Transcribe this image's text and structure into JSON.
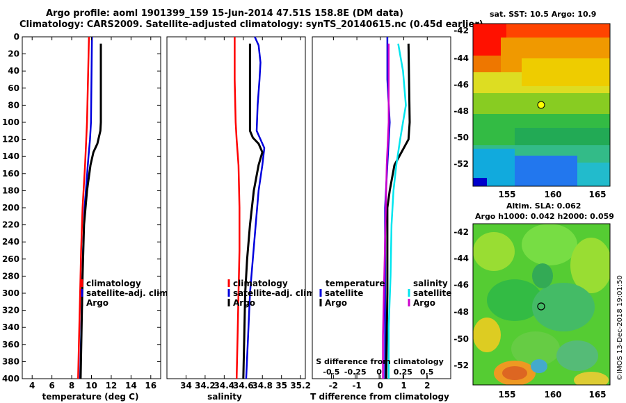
{
  "header": {
    "title_line1": "Argo profile: aoml 1901399_159 15-Jun-2014 47.51S 158.8E (DM data)",
    "title_line2": "Climatology: CARS2009. Satellite-adjusted climatology: synTS_20140615.nc (0.45d earlier)"
  },
  "map_sst": {
    "title": "sat. SST: 10.5 Argo: 10.9",
    "lat_ticks": [
      "-42",
      "-44",
      "-46",
      "-48",
      "-50",
      "-52"
    ],
    "lon_ticks": [
      "155",
      "160",
      "165"
    ]
  },
  "map_sla": {
    "title_line1": "Altim. SLA: 0.062",
    "title_line2": "Argo h1000: 0.042 h2000: 0.059",
    "lat_ticks": [
      "-42",
      "-44",
      "-46",
      "-48",
      "-50",
      "-52"
    ],
    "lon_ticks": [
      "155",
      "160",
      "165"
    ]
  },
  "watermark": "©IMOS 13-Dec-2018 19:01:50",
  "colors": {
    "climatology": "#ff0000",
    "satellite": "#0000dd",
    "argo": "#000000",
    "s_satellite": "#00e5ee",
    "s_argo": "#cc00cc"
  },
  "chart_data": [
    {
      "type": "line",
      "xlabel": "temperature (deg C)",
      "xlim": [
        3,
        17
      ],
      "ylim": [
        0,
        400
      ],
      "x_ticks": [
        "4",
        "6",
        "8",
        "10",
        "12",
        "14",
        "16"
      ],
      "y_ticks": [
        "0",
        "20",
        "40",
        "60",
        "80",
        "100",
        "120",
        "140",
        "160",
        "180",
        "200",
        "220",
        "240",
        "260",
        "280",
        "300",
        "320",
        "340",
        "360",
        "380",
        "400"
      ],
      "legend": [
        "climatology",
        "satellite-adj. clim.",
        "Argo"
      ],
      "series": [
        {
          "name": "climatology",
          "color": "#ff0000",
          "depth": [
            0,
            50,
            100,
            150,
            200,
            250,
            300,
            350,
            400
          ],
          "values": [
            9.75,
            9.65,
            9.55,
            9.35,
            9.1,
            8.95,
            8.85,
            8.75,
            8.65
          ]
        },
        {
          "name": "satellite-adj. clim.",
          "color": "#0000dd",
          "depth": [
            0,
            50,
            100,
            120,
            140,
            170,
            200,
            250,
            300,
            350,
            400
          ],
          "values": [
            10.05,
            10.0,
            9.95,
            9.85,
            9.7,
            9.5,
            9.3,
            9.15,
            9.05,
            8.95,
            8.85
          ]
        },
        {
          "name": "Argo",
          "color": "#000000",
          "depth": [
            8,
            100,
            110,
            125,
            135,
            150,
            180,
            220,
            280,
            340,
            400
          ],
          "values": [
            10.95,
            10.95,
            10.9,
            10.6,
            10.2,
            9.9,
            9.55,
            9.25,
            9.1,
            9.0,
            8.9
          ]
        }
      ]
    },
    {
      "type": "line",
      "xlabel": "salinity",
      "xlim": [
        33.8,
        35.25
      ],
      "ylim": [
        0,
        400
      ],
      "x_ticks": [
        "34",
        "34.2",
        "34.4",
        "34.6",
        "34.8",
        "35",
        "35.2"
      ],
      "legend": [
        "climatology",
        "satellite-adj. clim.",
        "Argo"
      ],
      "series": [
        {
          "name": "climatology",
          "color": "#ff0000",
          "depth": [
            0,
            50,
            100,
            120,
            150,
            200,
            250,
            300,
            350,
            400
          ],
          "values": [
            34.51,
            34.51,
            34.52,
            34.53,
            34.55,
            34.56,
            34.56,
            34.55,
            34.54,
            34.53
          ]
        },
        {
          "name": "satellite-adj. clim.",
          "color": "#0000dd",
          "depth": [
            0,
            10,
            30,
            50,
            80,
            110,
            130,
            150,
            180,
            220,
            260,
            300,
            350,
            400
          ],
          "values": [
            34.72,
            34.76,
            34.78,
            34.77,
            34.75,
            34.74,
            34.82,
            34.8,
            34.76,
            34.73,
            34.7,
            34.67,
            34.65,
            34.63
          ]
        },
        {
          "name": "Argo",
          "color": "#000000",
          "depth": [
            8,
            110,
            118,
            125,
            135,
            150,
            180,
            220,
            260,
            300,
            350,
            400
          ],
          "values": [
            34.67,
            34.67,
            34.7,
            34.76,
            34.8,
            34.76,
            34.71,
            34.67,
            34.64,
            34.62,
            34.61,
            34.6
          ]
        }
      ]
    },
    {
      "type": "line",
      "xlabel": "T difference from climatology",
      "x2label": "S difference from climatology",
      "xlim": [
        -2.9,
        3.0
      ],
      "x2lim": [
        -0.7,
        0.75
      ],
      "ylim": [
        0,
        400
      ],
      "x_ticks": [
        "-2",
        "-1",
        "0",
        "1",
        "2"
      ],
      "x2_ticks": [
        "-0.5",
        "-0.25",
        "0",
        "0.25",
        "0.5"
      ],
      "legend_temperature_title": "temperature",
      "legend_salinity_title": "salinity",
      "legend_temperature": [
        "satellite",
        "Argo"
      ],
      "legend_salinity": [
        "satellite",
        "Argo"
      ],
      "series": [
        {
          "name": "T satellite",
          "color": "#0000dd",
          "depth": [
            0,
            50,
            100,
            150,
            200,
            300,
            400
          ],
          "values": [
            0.3,
            0.3,
            0.4,
            0.3,
            0.2,
            0.2,
            0.2
          ]
        },
        {
          "name": "T Argo",
          "color": "#000000",
          "depth": [
            8,
            100,
            120,
            135,
            150,
            180,
            200,
            250,
            300,
            400
          ],
          "values": [
            1.2,
            1.25,
            1.2,
            0.9,
            0.6,
            0.4,
            0.3,
            0.3,
            0.3,
            0.25
          ]
        },
        {
          "name": "S satellite",
          "color": "#00e5ee",
          "depth": [
            8,
            40,
            80,
            120,
            150,
            180,
            220,
            280,
            340,
            400
          ],
          "values": [
            0.2,
            0.25,
            0.28,
            0.22,
            0.18,
            0.15,
            0.13,
            0.12,
            0.1,
            0.1
          ]
        },
        {
          "name": "S Argo",
          "color": "#cc00cc",
          "depth": [
            8,
            100,
            150,
            200,
            250,
            300,
            350,
            400
          ],
          "values": [
            0.1,
            0.1,
            0.08,
            0.07,
            0.06,
            0.05,
            0.04,
            0.04
          ]
        }
      ]
    }
  ]
}
